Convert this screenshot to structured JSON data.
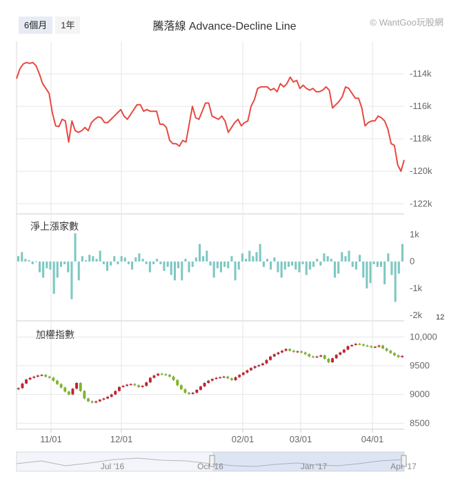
{
  "range_buttons": [
    {
      "label": "6個月",
      "active": true
    },
    {
      "label": "1年",
      "active": false
    }
  ],
  "title": "騰落線 Advance-Decline Line",
  "credit": "© WantGoo玩股網",
  "colors": {
    "line": "#e8473f",
    "bar": "#7ec8c2",
    "up": "#c8202c",
    "down": "#7fb626",
    "grid": "#e6e6e6",
    "axis_text": "#666666"
  },
  "chart_data": [
    {
      "type": "line",
      "title": "騰落線 Advance-Decline Line",
      "y_ticks": [
        -114000,
        -116000,
        -118000,
        -120000,
        -122000
      ],
      "y_tick_labels": [
        "-114k",
        "-116k",
        "-118k",
        "-120k",
        "-122k"
      ],
      "ylim": [
        -122200,
        -112000
      ],
      "grid": true,
      "values": [
        -114300,
        -113700,
        -113400,
        -113300,
        -113350,
        -113300,
        -113500,
        -114000,
        -114600,
        -114900,
        -115200,
        -116400,
        -117200,
        -117250,
        -116800,
        -116900,
        -118200,
        -116900,
        -117500,
        -117600,
        -117500,
        -117300,
        -117500,
        -117000,
        -116800,
        -116650,
        -116700,
        -117000,
        -117000,
        -116800,
        -116600,
        -116400,
        -116200,
        -116600,
        -116800,
        -116500,
        -116200,
        -115900,
        -115900,
        -116300,
        -116200,
        -116300,
        -116300,
        -116300,
        -117100,
        -117100,
        -117300,
        -118100,
        -118300,
        -118300,
        -118450,
        -118100,
        -118200,
        -117100,
        -116000,
        -116700,
        -116800,
        -116300,
        -115800,
        -115800,
        -116600,
        -116700,
        -116800,
        -116600,
        -116900,
        -117600,
        -117300,
        -117000,
        -116800,
        -117200,
        -117000,
        -116900,
        -116000,
        -115600,
        -114900,
        -114800,
        -114800,
        -114800,
        -115000,
        -114900,
        -115100,
        -114600,
        -114800,
        -114600,
        -114200,
        -114500,
        -114400,
        -114900,
        -114700,
        -114900,
        -115000,
        -114900,
        -115100,
        -115100,
        -115000,
        -114800,
        -115000,
        -116100,
        -115900,
        -115700,
        -115400,
        -114800,
        -114900,
        -115200,
        -115500,
        -115500,
        -116100,
        -117200,
        -117000,
        -116900,
        -116900,
        -116600,
        -116700,
        -116900,
        -117400,
        -118300,
        -118400,
        -119600,
        -120000,
        -119300
      ]
    },
    {
      "type": "bar",
      "label": "淨上漲家數",
      "y_ticks": [
        1000,
        0,
        -1000,
        -2000
      ],
      "y_tick_labels": [
        "1k",
        "0",
        "-1k",
        "-2k"
      ],
      "ylim": [
        -2000,
        1000
      ],
      "values": [
        200,
        350,
        100,
        50,
        -100,
        0,
        -400,
        -600,
        -250,
        -300,
        -1200,
        -600,
        -200,
        -100,
        -400,
        -1400,
        1050,
        -700,
        200,
        50,
        250,
        200,
        100,
        400,
        -100,
        -350,
        -150,
        200,
        -100,
        200,
        150,
        -100,
        -300,
        150,
        300,
        100,
        -100,
        -400,
        -100,
        100,
        -100,
        -350,
        -200,
        -500,
        -700,
        -250,
        -700,
        100,
        -400,
        -200,
        150,
        650,
        200,
        400,
        -150,
        -600,
        -250,
        -400,
        -200,
        -250,
        200,
        -700,
        -300,
        300,
        100,
        400,
        200,
        350,
        650,
        -200,
        100,
        -300,
        150,
        -400,
        -600,
        -300,
        -200,
        -150,
        -300,
        -400,
        -100,
        -500,
        -300,
        -200,
        100,
        -150,
        300,
        200,
        100,
        -600,
        -450,
        350,
        200,
        400,
        -200,
        -300,
        250,
        -600,
        -1000,
        -800,
        -100,
        -200,
        -200,
        -850,
        300,
        -500,
        -1500,
        -450,
        650
      ]
    },
    {
      "type": "candlestick",
      "label": "加權指數",
      "y_ticks": [
        10000,
        9500,
        9000,
        8500
      ],
      "y_tick_labels": [
        "10,000",
        "9500",
        "9000",
        "8500"
      ],
      "ylim": [
        8420,
        10100
      ],
      "x_tick_labels": [
        "11/01",
        "12/01",
        "02/01",
        "03/01",
        "04/01"
      ],
      "partial_label": "12",
      "values": [
        9110,
        9190,
        9260,
        9290,
        9310,
        9330,
        9340,
        9310,
        9290,
        9240,
        9180,
        9120,
        9050,
        9000,
        9100,
        9200,
        9060,
        8930,
        8880,
        8860,
        8880,
        8910,
        8930,
        8960,
        9000,
        9060,
        9130,
        9150,
        9170,
        9180,
        9160,
        9130,
        9150,
        9210,
        9290,
        9330,
        9360,
        9350,
        9340,
        9310,
        9250,
        9160,
        9090,
        9030,
        9010,
        9030,
        9080,
        9140,
        9200,
        9240,
        9270,
        9290,
        9300,
        9310,
        9280,
        9250,
        9300,
        9340,
        9380,
        9420,
        9460,
        9490,
        9510,
        9540,
        9600,
        9660,
        9700,
        9730,
        9760,
        9790,
        9760,
        9740,
        9750,
        9730,
        9700,
        9660,
        9650,
        9660,
        9680,
        9620,
        9560,
        9630,
        9690,
        9730,
        9780,
        9840,
        9860,
        9880,
        9870,
        9850,
        9840,
        9820,
        9830,
        9850,
        9800,
        9760,
        9720,
        9680,
        9650,
        9670
      ]
    }
  ],
  "navigator": {
    "labels": [
      "Jul '16",
      "Oct '16",
      "Jan '17",
      "Apr '17"
    ]
  }
}
